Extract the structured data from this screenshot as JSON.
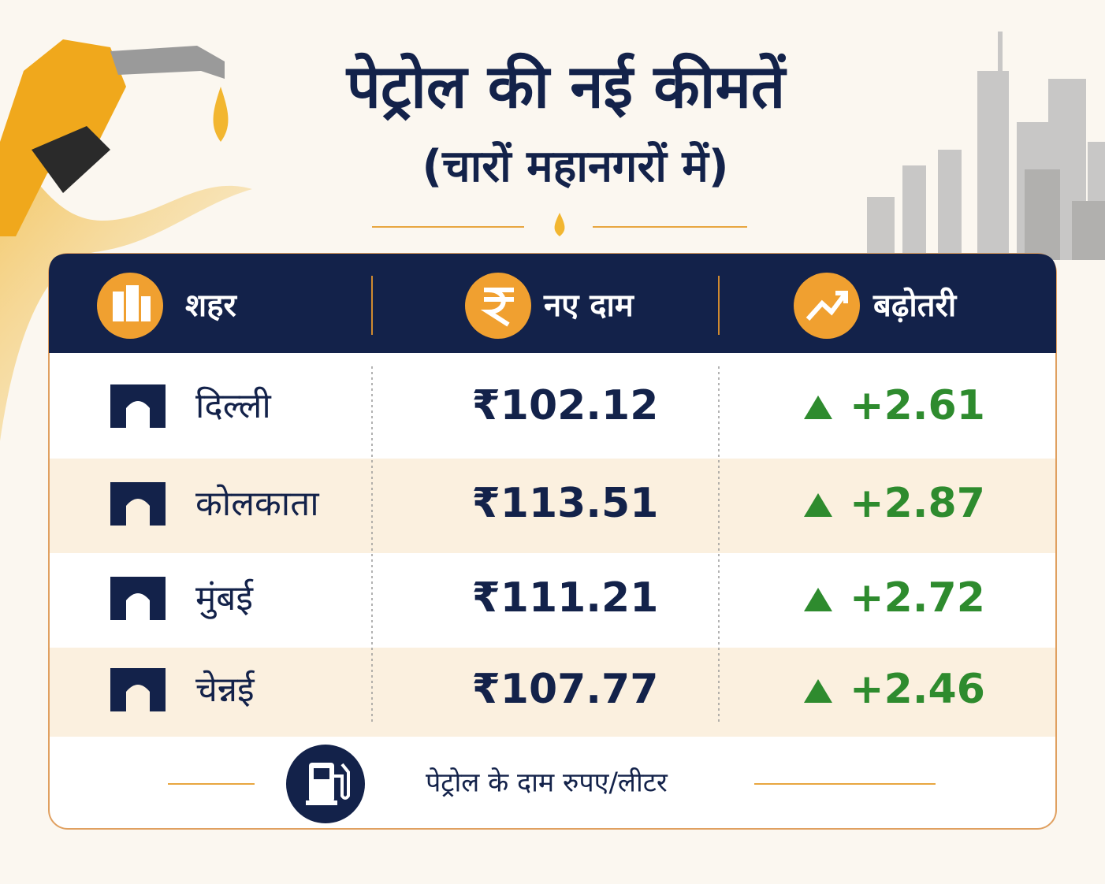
{
  "header": {
    "title": "पेट्रोल की नई कीमतें",
    "subtitle": "(चारों महानगरों में)"
  },
  "table": {
    "columns": [
      "शहर",
      "नए दाम",
      "बढ़ोतरी"
    ],
    "rows": [
      [
        "दिल्ली",
        "₹102.12",
        "+2.61"
      ],
      [
        "कोलकाता",
        "₹113.51",
        "+2.87"
      ],
      [
        "मुंबई",
        "₹111.21",
        "+2.72"
      ],
      [
        "चेन्नई",
        "₹107.77",
        "+2.46"
      ]
    ]
  },
  "footer": {
    "note": "पेट्रोल के दाम रुपए/लीटर"
  }
}
